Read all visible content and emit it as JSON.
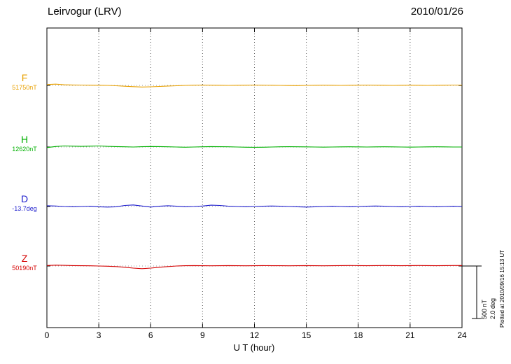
{
  "header": {
    "title": "Leirvogur (LRV)",
    "date": "2010/01/26"
  },
  "xlabel": "U T (hour)",
  "scale_bar": {
    "nt_label": "500 nT",
    "deg_label": "2.0 deg"
  },
  "plot_note": "Plotted at 2010/09/16 15:13 UT",
  "chart_data": {
    "type": "line",
    "title": "Leirvogur (LRV) magnetogram",
    "xlabel": "U T (hour)",
    "x_range": [
      0,
      24
    ],
    "x_step": 0.5,
    "x_ticks": [
      0,
      3,
      6,
      9,
      12,
      15,
      18,
      21,
      24
    ],
    "grid": "dotted vertical lines at 3-hour ticks; dotted horizontal baseline per trace",
    "legend_position": "left margin labels",
    "scale": {
      "nT_per_bar": 500,
      "deg_per_bar": 2.0
    },
    "series": [
      {
        "name": "F",
        "unit": "nT",
        "baseline": 51750,
        "baseline_label": "51750nT",
        "color": "#e8a000",
        "offsets": [
          8,
          12,
          6,
          4,
          3,
          2,
          1,
          0,
          -3,
          -8,
          -12,
          -15,
          -13,
          -10,
          -6,
          -3,
          0,
          2,
          3,
          2,
          1,
          0,
          1,
          2,
          3,
          2,
          1,
          0,
          -1,
          -2,
          0,
          1,
          2,
          1,
          0,
          1,
          2,
          3,
          2,
          1,
          0,
          1,
          2,
          1,
          0,
          1,
          2,
          3,
          3
        ]
      },
      {
        "name": "H",
        "unit": "nT",
        "baseline": 12620,
        "baseline_label": "12620nT",
        "color": "#00b000",
        "offsets": [
          -5,
          5,
          10,
          8,
          6,
          8,
          10,
          6,
          4,
          2,
          0,
          3,
          5,
          4,
          2,
          0,
          -2,
          0,
          2,
          4,
          3,
          2,
          0,
          -2,
          -3,
          -2,
          0,
          2,
          3,
          2,
          1,
          0,
          -1,
          0,
          1,
          2,
          1,
          0,
          1,
          2,
          1,
          0,
          -1,
          0,
          1,
          2,
          1,
          0,
          0
        ]
      },
      {
        "name": "D",
        "unit": "deg",
        "baseline": -13.7,
        "baseline_label": "-13.7deg",
        "color": "#1a1acc",
        "offsets": [
          0.03,
          0.02,
          0,
          -0.01,
          0,
          0.01,
          -0.01,
          -0.02,
          -0.01,
          0.04,
          0.06,
          0.02,
          -0.02,
          0.01,
          0.03,
          0.01,
          -0.01,
          0,
          0.02,
          0.05,
          0.04,
          0.01,
          0,
          -0.01,
          0,
          0.01,
          0.02,
          0.01,
          0,
          -0.01,
          -0.02,
          -0.01,
          0,
          0.01,
          0,
          -0.01,
          0,
          0.01,
          0.02,
          0.01,
          0,
          -0.01,
          0,
          0.01,
          0,
          -0.01,
          0,
          0.01,
          0
        ]
      },
      {
        "name": "Z",
        "unit": "nT",
        "baseline": 50190,
        "baseline_label": "50190nT",
        "color": "#d40000",
        "offsets": [
          5,
          8,
          6,
          4,
          3,
          2,
          0,
          -2,
          -5,
          -12,
          -20,
          -25,
          -20,
          -12,
          -5,
          0,
          3,
          4,
          3,
          2,
          3,
          4,
          3,
          2,
          3,
          4,
          3,
          3,
          2,
          3,
          4,
          3,
          2,
          3,
          4,
          5,
          4,
          3,
          4,
          5,
          4,
          3,
          4,
          5,
          4,
          3,
          4,
          5,
          5
        ]
      }
    ]
  }
}
